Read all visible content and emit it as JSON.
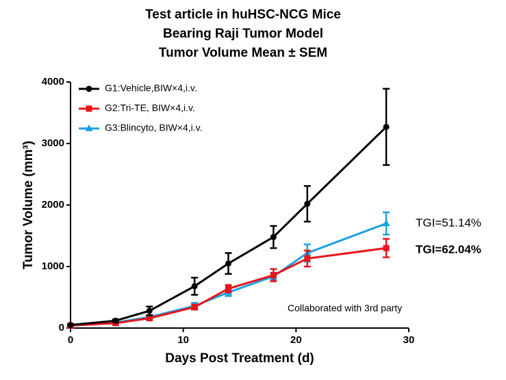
{
  "chart_data": {
    "type": "line",
    "title": [
      "Test article in huHSC-NCG Mice",
      "Bearing Raji Tumor Model",
      "Tumor Volume Mean ± SEM"
    ],
    "x_label": "Days Post Treatment (d)",
    "y_label": "Tumor Volume (mm³)",
    "x": [
      0,
      4,
      7,
      11,
      14,
      18,
      21,
      28
    ],
    "series": [
      {
        "name": "G1:Vehicle,BIW×4,i.v.",
        "color": "#000000",
        "marker": "circle",
        "values": [
          50,
          120,
          280,
          680,
          1050,
          1480,
          2020,
          3270
        ],
        "errors": [
          10,
          20,
          70,
          140,
          170,
          180,
          290,
          620
        ]
      },
      {
        "name": "G2:Tri-TE, BIW×4,i.v.",
        "color": "#e8141b",
        "marker": "square",
        "values": [
          40,
          80,
          160,
          340,
          640,
          860,
          1130,
          1300
        ],
        "errors": [
          10,
          20,
          30,
          40,
          60,
          100,
          130,
          150
        ]
      },
      {
        "name": "G3:Blincyto, BIW×4,i.v.",
        "color": "#1ba1e2",
        "marker": "triangle",
        "values": [
          40,
          90,
          180,
          360,
          580,
          840,
          1220,
          1700
        ],
        "errors": [
          10,
          20,
          30,
          50,
          60,
          60,
          140,
          180
        ]
      }
    ],
    "annotations": [
      {
        "text": "TGI=51.14%",
        "color": "#1ba1e2"
      },
      {
        "text": "TGI=62.04%",
        "color": "#e8141b"
      },
      {
        "text": "Collaborated with 3rd party",
        "color": "#000000"
      }
    ],
    "xlim": [
      0,
      30
    ],
    "xticks": [
      0,
      10,
      20,
      30
    ],
    "ylim": [
      0,
      4000
    ],
    "yticks": [
      0,
      1000,
      2000,
      3000,
      4000
    ],
    "grid": false,
    "legend": "top-left"
  }
}
